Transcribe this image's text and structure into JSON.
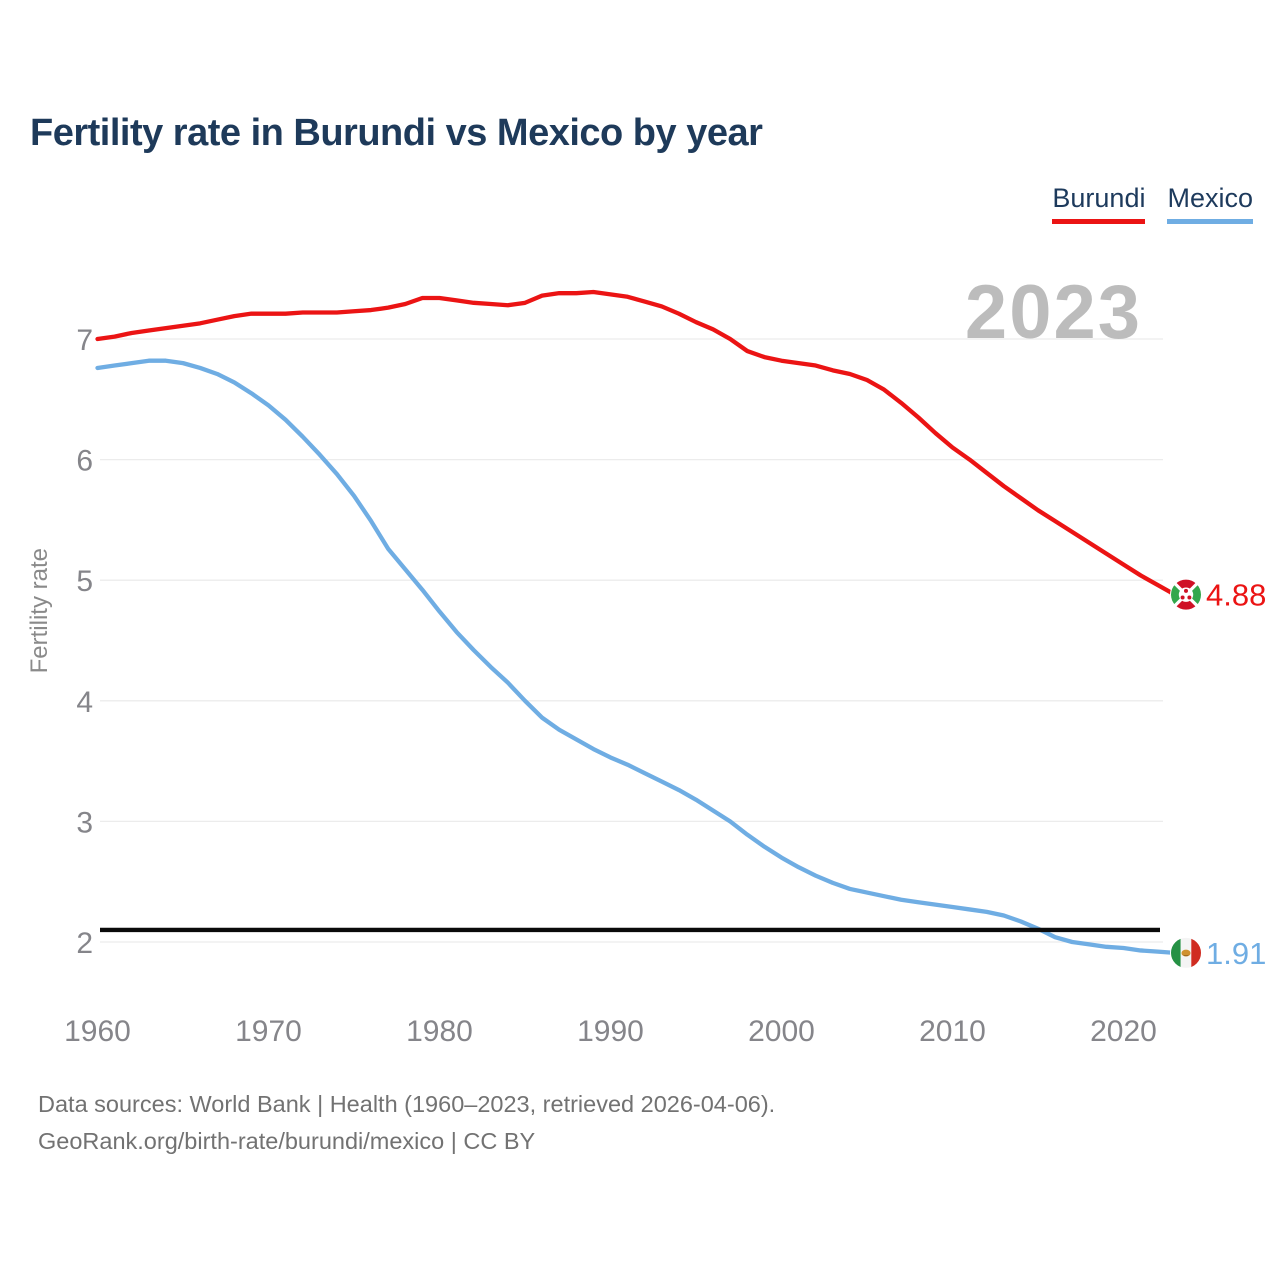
{
  "header": {
    "title": "Fertility rate in Burundi vs Mexico by year"
  },
  "legend": [
    {
      "label": "Burundi",
      "color": "#eb1414"
    },
    {
      "label": "Mexico",
      "color": "#6fade3"
    }
  ],
  "watermark": "2023",
  "y_axis_label": "Fertility rate",
  "footer": {
    "line1": "Data sources: World Bank | Health (1960–2023, retrieved 2026-04-06).",
    "line2": "GeoRank.org/birth-rate/burundi/mexico | CC BY"
  },
  "chart_data": {
    "type": "line",
    "title": "Fertility rate in Burundi vs Mexico by year",
    "xlabel": "",
    "ylabel": "Fertility rate",
    "grid": "horizontal",
    "legend_position": "top-right",
    "xlim": [
      1960,
      2023
    ],
    "ylim": [
      1.55,
      7.6
    ],
    "x_ticks": [
      1960,
      1970,
      1980,
      1990,
      2000,
      2010,
      2020
    ],
    "y_ticks": [
      2,
      3,
      4,
      5,
      6,
      7
    ],
    "reference_line": {
      "value": 2.1,
      "color": "#0a0a0a"
    },
    "years": [
      1960,
      1961,
      1962,
      1963,
      1964,
      1965,
      1966,
      1967,
      1968,
      1969,
      1970,
      1971,
      1972,
      1973,
      1974,
      1975,
      1976,
      1977,
      1978,
      1979,
      1980,
      1981,
      1982,
      1983,
      1984,
      1985,
      1986,
      1987,
      1988,
      1989,
      1990,
      1991,
      1992,
      1993,
      1994,
      1995,
      1996,
      1997,
      1998,
      1999,
      2000,
      2001,
      2002,
      2003,
      2004,
      2005,
      2006,
      2007,
      2008,
      2009,
      2010,
      2011,
      2012,
      2013,
      2014,
      2015,
      2016,
      2017,
      2018,
      2019,
      2020,
      2021,
      2022,
      2023
    ],
    "series": [
      {
        "name": "Burundi",
        "color": "#eb1414",
        "end_label": "4.88",
        "flag": "burundi",
        "values": [
          7.0,
          7.02,
          7.05,
          7.07,
          7.09,
          7.11,
          7.13,
          7.16,
          7.19,
          7.21,
          7.21,
          7.21,
          7.22,
          7.22,
          7.22,
          7.23,
          7.24,
          7.26,
          7.29,
          7.34,
          7.34,
          7.32,
          7.3,
          7.29,
          7.28,
          7.3,
          7.36,
          7.38,
          7.38,
          7.39,
          7.37,
          7.35,
          7.31,
          7.27,
          7.21,
          7.14,
          7.08,
          7.0,
          6.9,
          6.85,
          6.82,
          6.8,
          6.78,
          6.74,
          6.71,
          6.66,
          6.58,
          6.47,
          6.35,
          6.22,
          6.1,
          6.0,
          5.89,
          5.78,
          5.68,
          5.58,
          5.49,
          5.4,
          5.31,
          5.22,
          5.13,
          5.04,
          4.96,
          4.88
        ]
      },
      {
        "name": "Mexico",
        "color": "#6fade3",
        "end_label": "1.91",
        "flag": "mexico",
        "values": [
          6.76,
          6.78,
          6.8,
          6.82,
          6.82,
          6.8,
          6.76,
          6.71,
          6.64,
          6.55,
          6.45,
          6.33,
          6.19,
          6.04,
          5.88,
          5.7,
          5.49,
          5.26,
          5.09,
          4.92,
          4.74,
          4.57,
          4.42,
          4.28,
          4.15,
          4.0,
          3.86,
          3.76,
          3.68,
          3.6,
          3.53,
          3.47,
          3.4,
          3.33,
          3.26,
          3.18,
          3.09,
          3.0,
          2.89,
          2.79,
          2.7,
          2.62,
          2.55,
          2.49,
          2.44,
          2.41,
          2.38,
          2.35,
          2.33,
          2.31,
          2.29,
          2.27,
          2.25,
          2.22,
          2.17,
          2.11,
          2.04,
          2.0,
          1.98,
          1.96,
          1.95,
          1.93,
          1.92,
          1.91
        ]
      }
    ]
  }
}
